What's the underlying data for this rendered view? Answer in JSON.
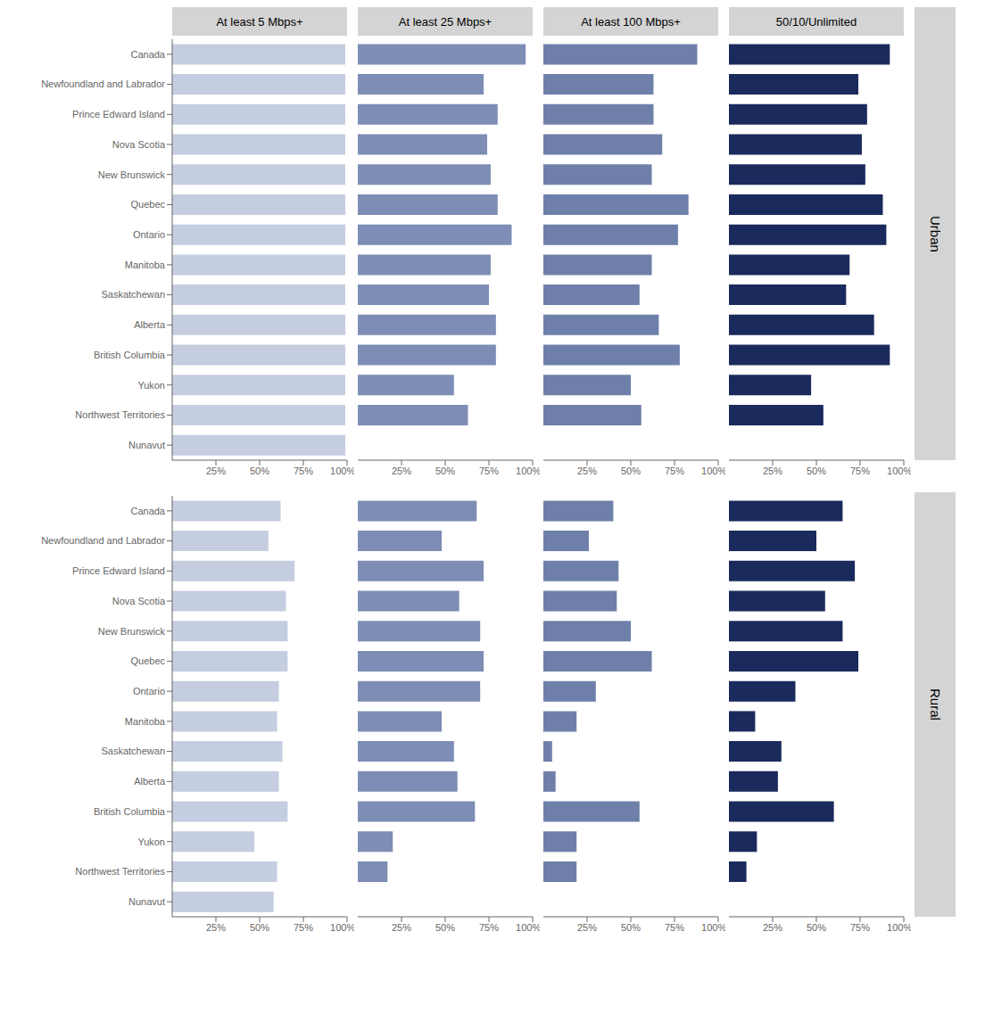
{
  "chart_data": [
    {
      "type": "bar",
      "orientation": "horizontal",
      "title": "At least 5 Mbps+",
      "categories": [
        "Canada",
        "Newfoundland and Labrador",
        "Prince Edward Island",
        "Nova Scotia",
        "New Brunswick",
        "Quebec",
        "Ontario",
        "Manitoba",
        "Saskatchewan",
        "Alberta",
        "British Columbia",
        "Yukon",
        "Northwest Territories",
        "Nunavut"
      ],
      "values": [
        99,
        99,
        99,
        99,
        99,
        99,
        99,
        99,
        99,
        99,
        99,
        99,
        99,
        99
      ],
      "color": "#c5cde0",
      "xlim": [
        0,
        100
      ],
      "xticks": [
        {
          "value": 25,
          "label": "25%"
        },
        {
          "value": 50,
          "label": "50%"
        },
        {
          "value": 75,
          "label": "75%"
        },
        {
          "value": 100,
          "label": "100%"
        }
      ],
      "grid": false
    },
    {
      "type": "bar",
      "orientation": "horizontal",
      "title": "At least 25 Mbps+",
      "categories": [
        "Canada",
        "Newfoundland and Labrador",
        "Prince Edward Island",
        "Nova Scotia",
        "New Brunswick",
        "Quebec",
        "Ontario",
        "Manitoba",
        "Saskatchewan",
        "Alberta",
        "British Columbia",
        "Yukon",
        "Northwest Territories",
        "Nunavut"
      ],
      "values": [
        96,
        72,
        80,
        74,
        76,
        80,
        88,
        76,
        75,
        79,
        79,
        55,
        63,
        0
      ],
      "color": "#7d8db5",
      "xlim": [
        0,
        100
      ],
      "xticks": [
        {
          "value": 25,
          "label": "25%"
        },
        {
          "value": 50,
          "label": "50%"
        },
        {
          "value": 75,
          "label": "75%"
        },
        {
          "value": 100,
          "label": "100%"
        }
      ],
      "grid": false,
      "tick_labels": "x"
    },
    {
      "type": "bar",
      "orientation": "horizontal",
      "title": "At least 100 Mbps+",
      "categories": [
        "Canada",
        "Newfoundland and Labrador",
        "Prince Edward Island",
        "Nova Scotia",
        "New Brunswick",
        "Quebec",
        "Ontario",
        "Manitoba",
        "Saskatchewan",
        "Alberta",
        "British Columbia",
        "Yukon",
        "Northwest Territories",
        "Nunavut"
      ],
      "values": [
        88,
        63,
        63,
        68,
        62,
        83,
        77,
        62,
        55,
        66,
        78,
        50,
        56,
        0
      ],
      "color": "#6e80aa",
      "xlim": [
        0,
        100
      ],
      "xticks": [
        {
          "value": 25,
          "label": "25%"
        },
        {
          "value": 50,
          "label": "50%"
        },
        {
          "value": 75,
          "label": "75%"
        },
        {
          "value": 100,
          "label": "100%"
        }
      ],
      "grid": false,
      "tick_labels": "x"
    },
    {
      "type": "bar",
      "orientation": "horizontal",
      "title": "50/10/Unlimited",
      "subtitle": "Urban",
      "categories": [
        "Canada",
        "Newfoundland and Labrador",
        "Prince Edward Island",
        "Nova Scotia",
        "New Brunswick",
        "Quebec",
        "Ontario",
        "Manitoba",
        "Saskatchewan",
        "Alberta",
        "British Columbia",
        "Yukon",
        "Northwest Territories",
        "Nunavut"
      ],
      "values": [
        92,
        74,
        79,
        76,
        78,
        88,
        90,
        69,
        67,
        83,
        92,
        47,
        54,
        0
      ],
      "color": "#1b2a5c",
      "xlim": [
        0,
        100
      ],
      "xticks": [
        {
          "value": 25,
          "label": "25%"
        },
        {
          "value": 50,
          "label": "50%"
        },
        {
          "value": 75,
          "label": "75%"
        },
        {
          "value": 100,
          "label": "100%"
        }
      ],
      "grid": false,
      "tick_labels": "x"
    },
    {
      "type": "bar",
      "orientation": "horizontal",
      "categories": [
        "Canada",
        "Newfoundland and Labrador",
        "Prince Edward Island",
        "Nova Scotia",
        "New Brunswick",
        "Quebec",
        "Ontario",
        "Manitoba",
        "Saskatchewan",
        "Alberta",
        "British Columbia",
        "Yukon",
        "Northwest Territories",
        "Nunavut"
      ],
      "values": [
        62,
        55,
        70,
        65,
        66,
        66,
        61,
        60,
        63,
        61,
        66,
        47,
        60,
        58
      ],
      "color": "#c5cde0",
      "xlim": [
        0,
        100
      ],
      "xticks": [
        {
          "value": 25,
          "label": "25%"
        },
        {
          "value": 50,
          "label": "50%"
        },
        {
          "value": 75,
          "label": "75%"
        },
        {
          "value": 100,
          "label": "100%"
        }
      ],
      "grid": false
    },
    {
      "type": "bar",
      "orientation": "horizontal",
      "categories": [
        "Canada",
        "Newfoundland and Labrador",
        "Prince Edward Island",
        "Nova Scotia",
        "New Brunswick",
        "Quebec",
        "Ontario",
        "Manitoba",
        "Saskatchewan",
        "Alberta",
        "British Columbia",
        "Yukon",
        "Northwest Territories",
        "Nunavut"
      ],
      "values": [
        68,
        48,
        72,
        58,
        70,
        72,
        70,
        48,
        55,
        57,
        67,
        20,
        17,
        0
      ],
      "color": "#7d8db5",
      "xlim": [
        0,
        100
      ],
      "xticks": [
        {
          "value": 25,
          "label": "25%"
        },
        {
          "value": 50,
          "label": "50%"
        },
        {
          "value": 75,
          "label": "75%"
        },
        {
          "value": 100,
          "label": "100%"
        }
      ],
      "grid": false,
      "tick_labels": "x"
    },
    {
      "type": "bar",
      "orientation": "horizontal",
      "categories": [
        "Canada",
        "Newfoundland and Labrador",
        "Prince Edward Island",
        "Nova Scotia",
        "New Brunswick",
        "Quebec",
        "Ontario",
        "Manitoba",
        "Saskatchewan",
        "Alberta",
        "British Columbia",
        "Yukon",
        "Northwest Territories",
        "Nunavut"
      ],
      "values": [
        40,
        26,
        43,
        42,
        50,
        62,
        30,
        19,
        5,
        7,
        55,
        19,
        19,
        0
      ],
      "color": "#6e80aa",
      "xlim": [
        0,
        100
      ],
      "xticks": [
        {
          "value": 25,
          "label": "25%"
        },
        {
          "value": 50,
          "label": "50%"
        },
        {
          "value": 75,
          "label": "75%"
        },
        {
          "value": 100,
          "label": "100%"
        }
      ],
      "grid": false,
      "tick_labels": "x"
    },
    {
      "type": "bar",
      "orientation": "horizontal",
      "subtitle": "Rural",
      "categories": [
        "Canada",
        "Newfoundland and Labrador",
        "Prince Edward Island",
        "Nova Scotia",
        "New Brunswick",
        "Quebec",
        "Ontario",
        "Manitoba",
        "Saskatchewan",
        "Alberta",
        "British Columbia",
        "Yukon",
        "Northwest Territories",
        "Nunavut"
      ],
      "values": [
        65,
        50,
        72,
        55,
        65,
        74,
        38,
        15,
        30,
        28,
        60,
        16,
        10,
        0
      ],
      "color": "#1b2a5c",
      "xlim": [
        0,
        100
      ],
      "xticks": [
        {
          "value": 25,
          "label": "25%"
        },
        {
          "value": 50,
          "label": "50%"
        },
        {
          "value": 75,
          "label": "75%"
        },
        {
          "value": 100,
          "label": "100%"
        }
      ],
      "grid": false,
      "tick_labels": "x"
    }
  ]
}
